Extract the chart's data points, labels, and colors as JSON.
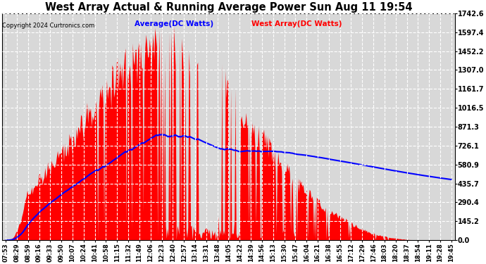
{
  "title": "West Array Actual & Running Average Power Sun Aug 11 19:54",
  "copyright": "Copyright 2024 Curtronics.com",
  "legend_avg": "Average(DC Watts)",
  "legend_west": "West Array(DC Watts)",
  "legend_avg_color": "blue",
  "legend_west_color": "red",
  "yticks": [
    0.0,
    145.2,
    290.4,
    435.7,
    580.9,
    726.1,
    871.3,
    1016.5,
    1161.7,
    1307.0,
    1452.2,
    1597.4,
    1742.6
  ],
  "ymin": 0.0,
  "ymax": 1742.6,
  "bg_color": "#ffffff",
  "plot_bg_color": "#d8d8d8",
  "grid_color": "white",
  "bar_color": "red",
  "line_color": "blue",
  "xtick_labels": [
    "07:53",
    "08:29",
    "08:59",
    "09:16",
    "09:33",
    "09:50",
    "10:07",
    "10:24",
    "10:41",
    "10:58",
    "11:15",
    "11:32",
    "11:49",
    "12:06",
    "12:23",
    "12:40",
    "12:57",
    "13:14",
    "13:31",
    "13:48",
    "14:05",
    "14:22",
    "14:39",
    "14:56",
    "15:13",
    "15:30",
    "15:47",
    "16:04",
    "16:21",
    "16:38",
    "16:55",
    "17:12",
    "17:29",
    "17:46",
    "18:03",
    "18:20",
    "18:37",
    "18:54",
    "19:11",
    "19:28",
    "19:45"
  ]
}
